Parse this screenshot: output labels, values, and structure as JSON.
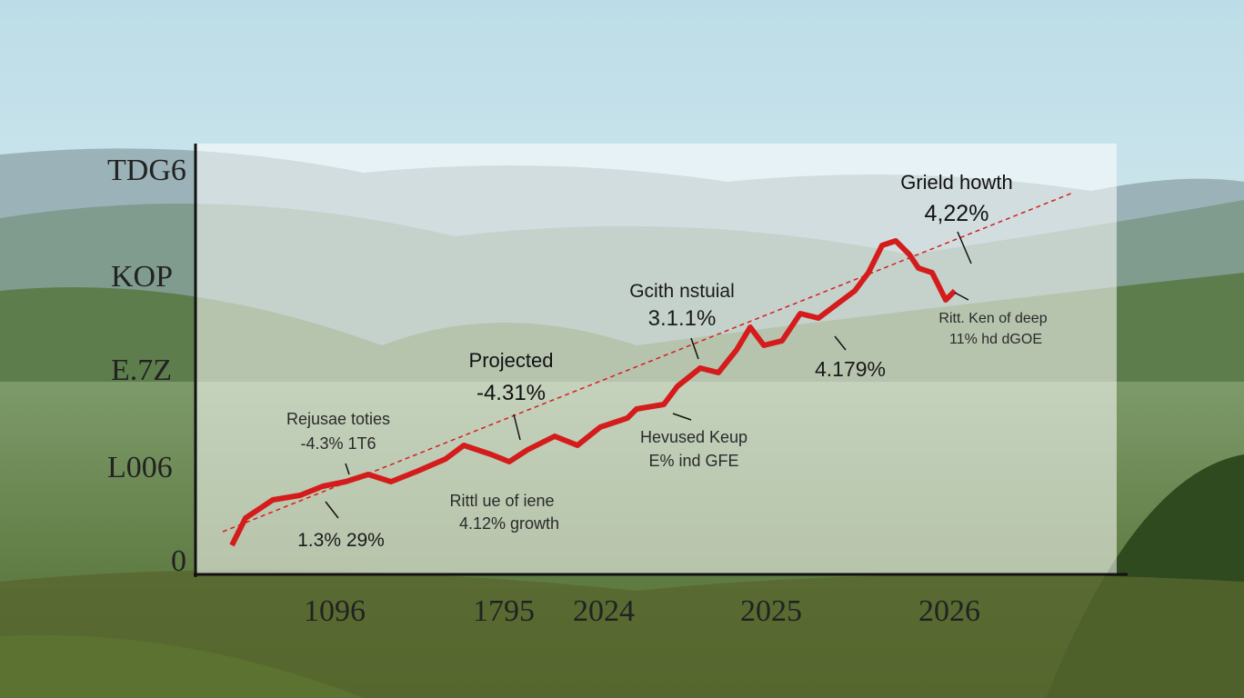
{
  "y_axis_labels": [
    "TDG6",
    "KOP",
    "E.7Z",
    "L006",
    "0"
  ],
  "x_axis_labels": [
    "1096",
    "1795",
    "2024",
    "2025",
    "2026"
  ],
  "annotations": [
    {
      "lines": [
        "Rejusae toties",
        "-4.3% 1T6"
      ]
    },
    {
      "lines": [
        "1.3% 29%"
      ]
    },
    {
      "lines": [
        "Projected",
        "-4.31%"
      ]
    },
    {
      "lines": [
        "Rittl ue of iene",
        "4.12% growth"
      ]
    },
    {
      "lines": [
        "Hevused Keup",
        "E% ind GFE"
      ]
    },
    {
      "lines": [
        "Gcith nstuial",
        "3.1.1%"
      ]
    },
    {
      "lines": [
        "4.179%"
      ]
    },
    {
      "lines": [
        "Grield howth",
        "4,22%"
      ]
    },
    {
      "lines": [
        "Ritt. Ken of deep",
        "11% hd dGOE"
      ]
    }
  ]
}
